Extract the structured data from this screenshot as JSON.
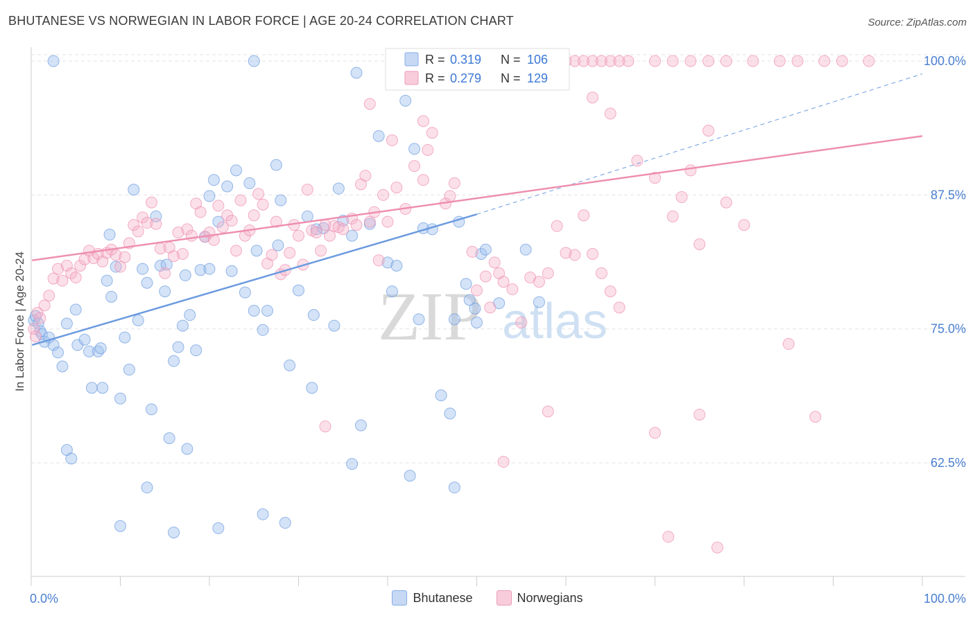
{
  "header": {
    "title": "BHUTANESE VS NORWEGIAN IN LABOR FORCE | AGE 20-24 CORRELATION CHART",
    "source": "Source: ZipAtlas.com"
  },
  "watermark": {
    "zip": "ZIP",
    "atlas": "atlas"
  },
  "legend_box": {
    "rows": [
      {
        "r_label": "R =",
        "r_value": "0.319",
        "n_label": "N =",
        "n_value": "106",
        "color": "#6c9be0"
      },
      {
        "r_label": "R =",
        "r_value": "0.279",
        "n_label": "N =",
        "n_value": "129",
        "color": "#ee8fb0"
      }
    ]
  },
  "legend_bottom": [
    {
      "label": "Bhutanese",
      "color": "#9fbfee"
    },
    {
      "label": "Norwegians",
      "color": "#f4b2c8"
    }
  ],
  "chart_data": {
    "type": "scatter",
    "ylabel": "In Labor Force | Age 20-24",
    "x_tick_labels": [
      "0.0%",
      "100.0%"
    ],
    "y_tick_labels": [
      "100.0%",
      "87.5%",
      "75.0%",
      "62.5%"
    ],
    "y_ticks": [
      100,
      87.5,
      75,
      62.5
    ],
    "xlim": [
      0,
      100
    ],
    "ylim": [
      51.9,
      101.3
    ],
    "grid": "horizontal dashed",
    "legend_placement": "top-center",
    "series": [
      {
        "name": "Bhutanese",
        "color": "#6c9be0",
        "fill": "rgba(160,192,238,0.45)",
        "trend": {
          "x0": 0.1,
          "y0": 73.5,
          "x1": 50.0,
          "y1": 85.7,
          "dashed_to_x": 100,
          "dashed_to_y": 98.8
        },
        "points": [
          [
            0.3,
            75.8
          ],
          [
            0.5,
            76.2
          ],
          [
            0.8,
            75.5
          ],
          [
            1.0,
            74.8
          ],
          [
            1.2,
            74.5
          ],
          [
            1.5,
            73.8
          ],
          [
            2.0,
            74.2
          ],
          [
            2.5,
            73.5
          ],
          [
            3.0,
            72.8
          ],
          [
            3.5,
            71.5
          ],
          [
            4.0,
            75.5
          ],
          [
            5.0,
            76.8
          ],
          [
            5.2,
            73.5
          ],
          [
            6.0,
            74.0
          ],
          [
            6.5,
            72.9
          ],
          [
            7.5,
            72.9
          ],
          [
            7.8,
            73.2
          ],
          [
            8.5,
            79.5
          ],
          [
            8.8,
            83.8
          ],
          [
            9.0,
            78.0
          ],
          [
            9.5,
            80.8
          ],
          [
            10.5,
            74.2
          ],
          [
            11.0,
            71.2
          ],
          [
            11.5,
            88.0
          ],
          [
            12.0,
            75.8
          ],
          [
            12.5,
            80.6
          ],
          [
            13.0,
            79.3
          ],
          [
            14.0,
            85.5
          ],
          [
            14.5,
            80.9
          ],
          [
            15.0,
            78.5
          ],
          [
            15.2,
            81.0
          ],
          [
            16.0,
            72.0
          ],
          [
            16.5,
            73.3
          ],
          [
            17.0,
            75.3
          ],
          [
            17.3,
            80.0
          ],
          [
            17.8,
            76.3
          ],
          [
            18.5,
            73.0
          ],
          [
            19.0,
            80.5
          ],
          [
            19.5,
            83.6
          ],
          [
            20.0,
            80.6
          ],
          [
            20.5,
            88.9
          ],
          [
            21.0,
            85.0
          ],
          [
            22.0,
            88.3
          ],
          [
            22.5,
            80.4
          ],
          [
            23.0,
            89.8
          ],
          [
            24.0,
            78.4
          ],
          [
            24.5,
            88.6
          ],
          [
            25.0,
            76.7
          ],
          [
            25.3,
            82.3
          ],
          [
            26.0,
            74.9
          ],
          [
            26.5,
            76.7
          ],
          [
            27.5,
            90.3
          ],
          [
            27.7,
            82.8
          ],
          [
            28.0,
            87.0
          ],
          [
            29.0,
            71.6
          ],
          [
            30.0,
            78.6
          ],
          [
            31.0,
            85.5
          ],
          [
            31.5,
            69.5
          ],
          [
            31.7,
            76.3
          ],
          [
            32.0,
            84.3
          ],
          [
            32.8,
            84.4
          ],
          [
            34.0,
            75.3
          ],
          [
            34.5,
            88.1
          ],
          [
            35.0,
            85.1
          ],
          [
            36.0,
            83.7
          ],
          [
            37.0,
            66.0
          ],
          [
            38.0,
            84.8
          ],
          [
            39.0,
            93.0
          ],
          [
            40.0,
            81.2
          ],
          [
            40.5,
            78.5
          ],
          [
            41.0,
            80.9
          ],
          [
            42.0,
            96.3
          ],
          [
            43.0,
            91.8
          ],
          [
            43.5,
            75.9
          ],
          [
            44.0,
            84.4
          ],
          [
            45.0,
            84.3
          ],
          [
            46.0,
            68.8
          ],
          [
            47.0,
            67.1
          ],
          [
            47.5,
            75.9
          ],
          [
            48.0,
            85.0
          ],
          [
            48.8,
            79.2
          ],
          [
            49.2,
            77.7
          ],
          [
            49.8,
            76.9
          ],
          [
            50.0,
            75.6
          ],
          [
            50.5,
            82.0
          ],
          [
            51.0,
            82.4
          ],
          [
            52.5,
            77.4
          ],
          [
            55.5,
            82.4
          ],
          [
            57.0,
            77.5
          ],
          [
            6.8,
            69.5
          ],
          [
            8.0,
            69.5
          ],
          [
            10.0,
            68.5
          ],
          [
            13.5,
            67.5
          ],
          [
            15.5,
            64.8
          ],
          [
            17.5,
            63.8
          ],
          [
            16.0,
            56.0
          ],
          [
            13.0,
            60.2
          ],
          [
            4.0,
            63.7
          ],
          [
            4.5,
            62.9
          ],
          [
            36.0,
            62.4
          ],
          [
            42.5,
            61.3
          ],
          [
            47.5,
            60.2
          ],
          [
            26.0,
            57.7
          ],
          [
            28.5,
            56.9
          ],
          [
            10.0,
            56.6
          ],
          [
            21.0,
            56.4
          ],
          [
            2.5,
            100.0
          ],
          [
            25.0,
            100.0
          ],
          [
            36.5,
            98.9
          ],
          [
            52.0,
            100.0
          ],
          [
            20.0,
            87.4
          ]
        ]
      },
      {
        "name": "Norwegians",
        "color": "#ee8fb0",
        "fill": "rgba(244,178,200,0.40)",
        "trend": {
          "x0": 0.1,
          "y0": 81.4,
          "x1": 100,
          "y1": 93.0
        },
        "points": [
          [
            0.3,
            75.0
          ],
          [
            0.5,
            74.3
          ],
          [
            0.7,
            76.5
          ],
          [
            1.0,
            76.0
          ],
          [
            1.5,
            77.2
          ],
          [
            2.0,
            78.1
          ],
          [
            2.5,
            79.7
          ],
          [
            3.0,
            80.6
          ],
          [
            3.5,
            79.5
          ],
          [
            4.0,
            80.9
          ],
          [
            4.5,
            80.2
          ],
          [
            5.0,
            79.8
          ],
          [
            5.5,
            80.9
          ],
          [
            6.0,
            81.5
          ],
          [
            6.5,
            82.3
          ],
          [
            7.0,
            81.6
          ],
          [
            7.5,
            82.0
          ],
          [
            8.0,
            81.3
          ],
          [
            8.5,
            82.1
          ],
          [
            9.0,
            82.4
          ],
          [
            9.5,
            81.9
          ],
          [
            10.0,
            80.8
          ],
          [
            10.5,
            81.7
          ],
          [
            11.0,
            83.0
          ],
          [
            11.5,
            84.7
          ],
          [
            12.0,
            84.1
          ],
          [
            12.5,
            85.4
          ],
          [
            13.0,
            84.9
          ],
          [
            13.5,
            86.8
          ],
          [
            14.0,
            84.8
          ],
          [
            14.5,
            82.5
          ],
          [
            15.0,
            80.2
          ],
          [
            15.5,
            82.6
          ],
          [
            16.0,
            81.8
          ],
          [
            16.5,
            84.0
          ],
          [
            17.0,
            82.0
          ],
          [
            17.5,
            84.3
          ],
          [
            18.0,
            83.7
          ],
          [
            18.5,
            86.7
          ],
          [
            19.0,
            85.9
          ],
          [
            19.5,
            83.6
          ],
          [
            20.0,
            84.0
          ],
          [
            20.5,
            83.3
          ],
          [
            21.0,
            86.5
          ],
          [
            21.5,
            84.5
          ],
          [
            22.0,
            85.6
          ],
          [
            22.5,
            85.1
          ],
          [
            23.0,
            82.3
          ],
          [
            23.5,
            87.0
          ],
          [
            24.0,
            83.7
          ],
          [
            24.5,
            84.2
          ],
          [
            25.0,
            85.6
          ],
          [
            25.5,
            87.6
          ],
          [
            26.0,
            86.6
          ],
          [
            26.5,
            81.1
          ],
          [
            27.0,
            81.9
          ],
          [
            27.5,
            85.0
          ],
          [
            28.0,
            80.1
          ],
          [
            28.5,
            80.5
          ],
          [
            29.0,
            82.1
          ],
          [
            29.5,
            84.7
          ],
          [
            30.0,
            83.7
          ],
          [
            30.5,
            81.0
          ],
          [
            31.0,
            88.0
          ],
          [
            31.5,
            84.2
          ],
          [
            32.0,
            84.0
          ],
          [
            32.5,
            82.3
          ],
          [
            33.0,
            84.7
          ],
          [
            33.5,
            83.7
          ],
          [
            34.0,
            84.6
          ],
          [
            34.5,
            84.5
          ],
          [
            35.0,
            84.3
          ],
          [
            36.0,
            85.3
          ],
          [
            36.5,
            84.7
          ],
          [
            37.0,
            88.5
          ],
          [
            37.5,
            89.3
          ],
          [
            38.0,
            85.0
          ],
          [
            38.5,
            85.9
          ],
          [
            39.0,
            81.4
          ],
          [
            39.5,
            87.5
          ],
          [
            40.0,
            85.0
          ],
          [
            40.5,
            92.6
          ],
          [
            41.0,
            88.2
          ],
          [
            42.0,
            86.2
          ],
          [
            43.0,
            90.2
          ],
          [
            44.0,
            88.9
          ],
          [
            44.5,
            91.7
          ],
          [
            45.0,
            93.3
          ],
          [
            46.5,
            86.7
          ],
          [
            47.0,
            87.4
          ],
          [
            47.5,
            88.6
          ],
          [
            49.5,
            82.2
          ],
          [
            50.0,
            78.6
          ],
          [
            51.0,
            79.9
          ],
          [
            51.5,
            77.0
          ],
          [
            52.0,
            81.2
          ],
          [
            52.5,
            80.2
          ],
          [
            53.0,
            79.4
          ],
          [
            54.0,
            78.7
          ],
          [
            55.0,
            75.6
          ],
          [
            56.0,
            79.8
          ],
          [
            57.0,
            79.4
          ],
          [
            58.0,
            80.2
          ],
          [
            59.0,
            84.6
          ],
          [
            60.0,
            82.1
          ],
          [
            61.0,
            81.9
          ],
          [
            62.0,
            85.6
          ],
          [
            63.0,
            82.0
          ],
          [
            64.0,
            80.2
          ],
          [
            65.0,
            78.5
          ],
          [
            66.0,
            77.0
          ],
          [
            68.0,
            90.7
          ],
          [
            70.0,
            89.1
          ],
          [
            72.0,
            85.5
          ],
          [
            73.0,
            87.3
          ],
          [
            74.0,
            89.8
          ],
          [
            75.0,
            82.9
          ],
          [
            76.0,
            93.5
          ],
          [
            78.0,
            86.8
          ],
          [
            80.0,
            84.7
          ],
          [
            33.0,
            65.9
          ],
          [
            38.0,
            96.0
          ],
          [
            44.0,
            94.4
          ],
          [
            53.0,
            62.6
          ],
          [
            58.0,
            67.3
          ],
          [
            63.0,
            96.6
          ],
          [
            65.0,
            95.1
          ],
          [
            70.0,
            65.3
          ],
          [
            71.5,
            55.6
          ],
          [
            75.0,
            67.0
          ],
          [
            77.0,
            54.6
          ],
          [
            85.0,
            73.6
          ],
          [
            88.0,
            66.8
          ],
          [
            47.5,
            100.0
          ],
          [
            50.0,
            100.0
          ],
          [
            53.0,
            100.0
          ],
          [
            55.0,
            100.0
          ],
          [
            57.0,
            100.0
          ],
          [
            59.0,
            100.0
          ],
          [
            60.0,
            100.0
          ],
          [
            61.0,
            100.0
          ],
          [
            62.0,
            100.0
          ],
          [
            63.0,
            100.0
          ],
          [
            64.0,
            100.0
          ],
          [
            65.0,
            100.0
          ],
          [
            66.0,
            100.0
          ],
          [
            67.0,
            100.0
          ],
          [
            70.0,
            100.0
          ],
          [
            72.0,
            100.0
          ],
          [
            74.0,
            100.0
          ],
          [
            76.0,
            100.0
          ],
          [
            78.0,
            100.0
          ],
          [
            81.0,
            100.0
          ],
          [
            84.0,
            100.0
          ],
          [
            86.0,
            100.0
          ],
          [
            89.0,
            100.0
          ],
          [
            91.0,
            100.0
          ],
          [
            94.0,
            100.0
          ]
        ]
      }
    ]
  }
}
